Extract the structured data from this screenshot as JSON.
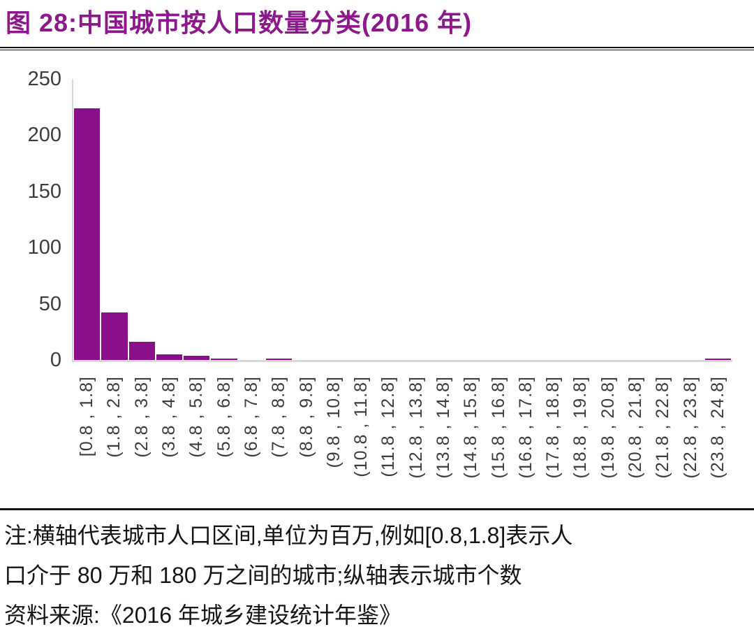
{
  "title": "图 28:中国城市按人口数量分类(2016 年)",
  "colors": {
    "bar": "#8B0E8B",
    "title_text": "#8C188C",
    "axis_line": "#D9D9D9",
    "tick_text": "#3C3C3C",
    "note_text": "#141414",
    "divider": "#141414"
  },
  "chart_data": {
    "type": "bar",
    "title": "中国城市按人口数量分类(2016 年)",
    "categories": [
      "[0.8 , 1.8]",
      "(1.8 , 2.8]",
      "(2.8 , 3.8]",
      "(3.8 , 4.8]",
      "(4.8 , 5.8]",
      "(5.8 , 6.8]",
      "(6.8 , 7.8]",
      "(7.8 , 8.8]",
      "(8.8 , 9.8]",
      "(9.8 , 10.8]",
      "(10.8 , 11.8]",
      "(11.8 , 12.8]",
      "(12.8 , 13.8]",
      "(13.8 , 14.8]",
      "(14.8 , 15.8]",
      "(15.8 , 16.8]",
      "(16.8 , 17.8]",
      "(17.8 , 18.8]",
      "(18.8 , 19.8]",
      "(19.8 , 20.8]",
      "(20.8 , 21.8]",
      "(21.8 , 22.8]",
      "(22.8 , 23.8]",
      "(23.8 , 24.8]"
    ],
    "values": [
      224,
      42,
      16,
      5,
      4,
      1,
      0,
      1,
      0,
      0,
      0,
      0,
      0,
      0,
      0,
      0,
      0,
      0,
      0,
      0,
      0,
      0,
      0,
      1
    ],
    "xlabel": "",
    "ylabel": "",
    "ylim": [
      0,
      250
    ],
    "yticks": [
      0,
      50,
      100,
      150,
      200,
      250
    ],
    "grid": false,
    "legend": false
  },
  "note": {
    "line1": "注:横轴代表城市人口区间,单位为百万,例如[0.8,1.8]表示人",
    "line2": "口介于 80 万和 180 万之间的城市;纵轴表示城市个数",
    "line3": "资料来源:《2016 年城乡建设统计年鉴》"
  }
}
